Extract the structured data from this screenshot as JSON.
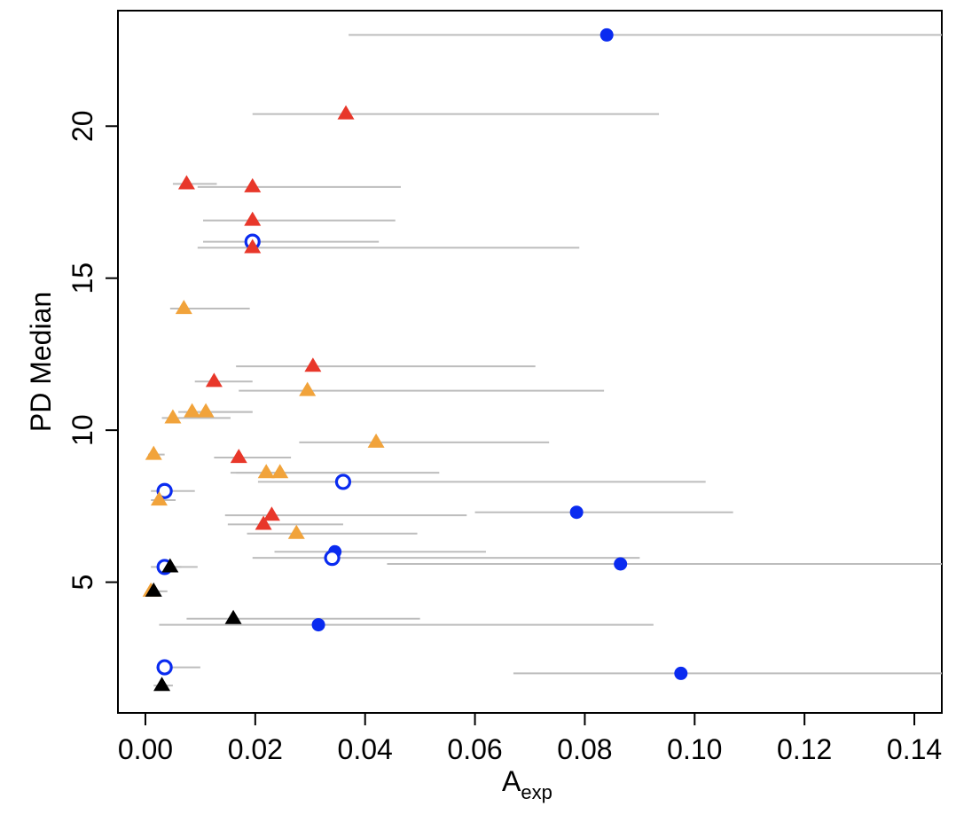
{
  "chart_data": {
    "type": "scatter",
    "title": "",
    "xlabel": "A",
    "xlabel_subscript": "exp",
    "ylabel": "PD Median",
    "xlim": [
      -0.005,
      0.145
    ],
    "ylim": [
      0.7,
      23.8
    ],
    "xticks": [
      0.0,
      0.02,
      0.04,
      0.06,
      0.08,
      0.1,
      0.12,
      0.14
    ],
    "xtick_labels": [
      "0.00",
      "0.02",
      "0.04",
      "0.06",
      "0.08",
      "0.10",
      "0.12",
      "0.14"
    ],
    "yticks": [
      5,
      10,
      15,
      20
    ],
    "ytick_labels": [
      "5",
      "10",
      "15",
      "20"
    ],
    "grid": false,
    "legend": "none",
    "colors": {
      "red": "#e8372a",
      "orange": "#f1a33b",
      "blue": "#0a2bf0",
      "black": "#000000",
      "error_bar": "#bdbdbd"
    },
    "series": [
      {
        "marker": "filled-circle",
        "color": "#0a2bf0",
        "points": [
          {
            "x": 0.084,
            "y": 23.0,
            "xmin": 0.037,
            "xmax": 0.145
          },
          {
            "x": 0.0785,
            "y": 7.3,
            "xmin": 0.06,
            "xmax": 0.107
          },
          {
            "x": 0.0345,
            "y": 6.0,
            "xmin": 0.0235,
            "xmax": 0.062
          },
          {
            "x": 0.0865,
            "y": 5.6,
            "xmin": 0.044,
            "xmax": 0.145
          },
          {
            "x": 0.0315,
            "y": 3.6,
            "xmin": 0.0025,
            "xmax": 0.0925
          },
          {
            "x": 0.0975,
            "y": 2.0,
            "xmin": 0.067,
            "xmax": 0.145
          }
        ]
      },
      {
        "marker": "open-circle",
        "color": "#0a2bf0",
        "points": [
          {
            "x": 0.0195,
            "y": 16.2,
            "xmin": 0.0105,
            "xmax": 0.0425
          },
          {
            "x": 0.0035,
            "y": 8.0,
            "xmin": 0.001,
            "xmax": 0.009
          },
          {
            "x": 0.036,
            "y": 8.3,
            "xmin": 0.0205,
            "xmax": 0.102
          },
          {
            "x": 0.034,
            "y": 5.8,
            "xmin": 0.0195,
            "xmax": 0.09
          },
          {
            "x": 0.0035,
            "y": 5.5,
            "xmin": 0.001,
            "xmax": 0.0095
          },
          {
            "x": 0.0035,
            "y": 2.2,
            "xmin": 0.002,
            "xmax": 0.01
          }
        ]
      },
      {
        "marker": "filled-triangle",
        "color": "#e8372a",
        "points": [
          {
            "x": 0.0365,
            "y": 20.4,
            "xmin": 0.0195,
            "xmax": 0.0935
          },
          {
            "x": 0.0075,
            "y": 18.1,
            "xmin": 0.005,
            "xmax": 0.013
          },
          {
            "x": 0.0195,
            "y": 18.0,
            "xmin": 0.0095,
            "xmax": 0.0465
          },
          {
            "x": 0.0195,
            "y": 16.9,
            "xmin": 0.0105,
            "xmax": 0.0455
          },
          {
            "x": 0.0195,
            "y": 16.0,
            "xmin": 0.0095,
            "xmax": 0.079
          },
          {
            "x": 0.0305,
            "y": 12.1,
            "xmin": 0.0165,
            "xmax": 0.071
          },
          {
            "x": 0.0125,
            "y": 11.6,
            "xmin": 0.009,
            "xmax": 0.0195
          },
          {
            "x": 0.017,
            "y": 9.1,
            "xmin": 0.0125,
            "xmax": 0.0265
          },
          {
            "x": 0.023,
            "y": 7.2,
            "xmin": 0.0145,
            "xmax": 0.0585
          },
          {
            "x": 0.0215,
            "y": 6.9,
            "xmin": 0.015,
            "xmax": 0.036
          }
        ]
      },
      {
        "marker": "filled-triangle",
        "color": "#f1a33b",
        "points": [
          {
            "x": 0.007,
            "y": 14.0,
            "xmin": 0.0045,
            "xmax": 0.019
          },
          {
            "x": 0.0295,
            "y": 11.3,
            "xmin": 0.017,
            "xmax": 0.0835
          },
          {
            "x": 0.0085,
            "y": 10.6,
            "xmin": 0.006,
            "xmax": 0.0195
          },
          {
            "x": 0.011,
            "y": 10.6,
            "xmin": 0.007,
            "xmax": 0.0195
          },
          {
            "x": 0.005,
            "y": 10.4,
            "xmin": 0.003,
            "xmax": 0.0155
          },
          {
            "x": 0.042,
            "y": 9.6,
            "xmin": 0.028,
            "xmax": 0.0735
          },
          {
            "x": 0.0015,
            "y": 9.2,
            "xmin": 0.0005,
            "xmax": 0.0035
          },
          {
            "x": 0.022,
            "y": 8.6,
            "xmin": 0.0155,
            "xmax": 0.035
          },
          {
            "x": 0.0245,
            "y": 8.6,
            "xmin": 0.0165,
            "xmax": 0.0535
          },
          {
            "x": 0.0025,
            "y": 7.7,
            "xmin": 0.001,
            "xmax": 0.0055
          },
          {
            "x": 0.0275,
            "y": 6.6,
            "xmin": 0.0185,
            "xmax": 0.0495
          },
          {
            "x": 0.001,
            "y": 4.7,
            "xmin": 0.0005,
            "xmax": 0.004
          }
        ]
      },
      {
        "marker": "filled-triangle",
        "color": "#000000",
        "points": [
          {
            "x": 0.0045,
            "y": 5.5,
            "xmin": 0.002,
            "xmax": 0.0065
          },
          {
            "x": 0.0015,
            "y": 4.7,
            "xmin": 0.0005,
            "xmax": 0.003
          },
          {
            "x": 0.016,
            "y": 3.8,
            "xmin": 0.0075,
            "xmax": 0.05
          },
          {
            "x": 0.003,
            "y": 1.6,
            "xmin": 0.0015,
            "xmax": 0.005
          }
        ]
      }
    ]
  }
}
